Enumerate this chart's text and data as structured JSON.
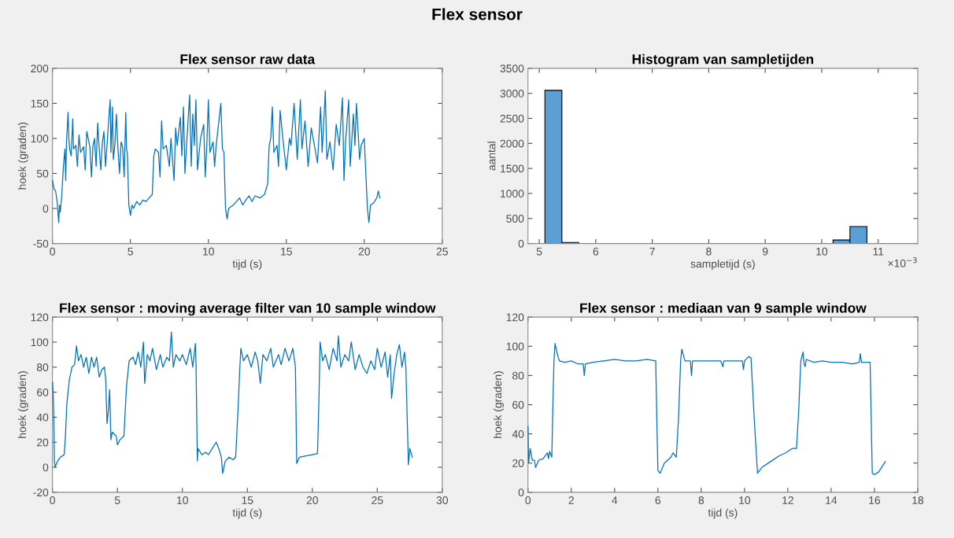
{
  "chart_data": [
    {
      "type": "other",
      "title": "Flex sensor"
    },
    {
      "type": "line",
      "title": "Flex sensor raw data",
      "xlabel": "tijd (s)",
      "ylabel": "hoek (graden)",
      "color": "#0072bd",
      "xlim": [
        0,
        25
      ],
      "xticks": [
        0,
        5,
        10,
        15,
        20,
        25
      ],
      "ylim": [
        -50,
        200
      ],
      "yticks": [
        -50,
        0,
        50,
        100,
        150,
        200
      ],
      "x": [
        0,
        0.1,
        0.2,
        0.3,
        0.4,
        0.45,
        0.5,
        0.6,
        0.7,
        0.8,
        0.85,
        0.9,
        1.0,
        1.05,
        1.1,
        1.2,
        1.3,
        1.35,
        1.5,
        1.6,
        1.7,
        1.8,
        2.0,
        2.1,
        2.2,
        2.4,
        2.5,
        2.6,
        2.7,
        2.8,
        2.9,
        3.0,
        3.1,
        3.2,
        3.3,
        3.4,
        3.5,
        3.6,
        3.7,
        3.75,
        3.85,
        3.9,
        4.0,
        4.1,
        4.2,
        4.3,
        4.4,
        4.5,
        4.6,
        4.7,
        4.75,
        4.8,
        4.9,
        5.0,
        5.1,
        5.2,
        5.4,
        5.6,
        5.8,
        6.0,
        6.2,
        6.4,
        6.5,
        6.6,
        6.8,
        6.9,
        7.0,
        7.1,
        7.3,
        7.5,
        7.6,
        7.8,
        7.9,
        8.0,
        8.2,
        8.3,
        8.4,
        8.5,
        8.6,
        8.8,
        8.9,
        9.0,
        9.1,
        9.2,
        9.3,
        9.5,
        9.7,
        9.8,
        9.9,
        10.0,
        10.1,
        10.3,
        10.4,
        10.5,
        10.8,
        10.9,
        11.0,
        11.1,
        11.2,
        11.3,
        11.6,
        11.8,
        12.0,
        12.2,
        12.4,
        12.6,
        12.8,
        13.0,
        13.3,
        13.6,
        13.8,
        13.9,
        14.0,
        14.1,
        14.2,
        14.4,
        14.5,
        14.6,
        14.8,
        15.0,
        15.2,
        15.3,
        15.5,
        15.7,
        15.9,
        16.0,
        16.2,
        16.4,
        16.6,
        16.8,
        17.0,
        17.2,
        17.3,
        17.5,
        17.6,
        17.8,
        18.0,
        18.2,
        18.4,
        18.6,
        18.7,
        18.8,
        19.0,
        19.1,
        19.3,
        19.4,
        19.5,
        19.7,
        19.8,
        20.0,
        20.1,
        20.2,
        20.3,
        20.4,
        20.6,
        20.8,
        20.9,
        21.0
      ],
      "values": [
        40,
        28,
        25,
        10,
        -20,
        5,
        -5,
        20,
        60,
        85,
        40,
        95,
        137,
        100,
        85,
        75,
        128,
        85,
        90,
        60,
        105,
        80,
        88,
        55,
        110,
        88,
        45,
        90,
        100,
        60,
        122,
        85,
        55,
        95,
        110,
        60,
        90,
        125,
        155,
        80,
        145,
        70,
        90,
        135,
        85,
        50,
        95,
        88,
        45,
        137,
        85,
        80,
        5,
        -10,
        5,
        0,
        10,
        5,
        12,
        10,
        15,
        20,
        75,
        85,
        80,
        45,
        125,
        85,
        90,
        60,
        100,
        40,
        115,
        90,
        130,
        75,
        145,
        50,
        90,
        162,
        60,
        135,
        90,
        155,
        55,
        100,
        120,
        45,
        90,
        155,
        80,
        95,
        60,
        90,
        150,
        85,
        80,
        0,
        -15,
        0,
        5,
        10,
        15,
        5,
        12,
        18,
        10,
        18,
        15,
        20,
        35,
        90,
        100,
        145,
        80,
        90,
        60,
        140,
        95,
        55,
        100,
        90,
        150,
        70,
        155,
        85,
        125,
        60,
        115,
        90,
        65,
        145,
        80,
        168,
        70,
        95,
        55,
        120,
        90,
        158,
        40,
        95,
        155,
        60,
        135,
        90,
        150,
        70,
        90,
        100,
        50,
        0,
        -20,
        5,
        8,
        15,
        25,
        15
      ]
    },
    {
      "type": "histogram",
      "title": "Histogram van sampletijden",
      "xlabel": "sampletijd (s)",
      "ylabel": "aantal",
      "color": "#5b9fd4",
      "xlim": [
        4.8,
        11.7
      ],
      "xticks": [
        5,
        6,
        7,
        8,
        9,
        10,
        11
      ],
      "ylim": [
        0,
        3500
      ],
      "yticks": [
        0,
        500,
        1000,
        1500,
        2000,
        2500,
        3000,
        3500
      ],
      "bins": [
        5.1,
        5.4,
        5.7,
        6.0,
        6.3,
        6.6,
        6.9,
        7.2,
        7.5,
        7.8,
        8.1,
        8.4,
        8.7,
        9.0,
        9.3,
        9.6,
        9.9,
        10.2,
        10.5,
        10.8
      ],
      "values": [
        3060,
        20,
        0,
        0,
        0,
        0,
        0,
        0,
        0,
        0,
        0,
        0,
        0,
        0,
        0,
        0,
        0,
        70,
        340
      ],
      "annotations": [
        "×10$^{−3}$"
      ]
    },
    {
      "type": "line",
      "title": "Flex sensor : moving average filter van 10 sample window",
      "xlabel": "tijd (s)",
      "ylabel": "hoek (graden)",
      "color": "#0072bd",
      "xlim": [
        0,
        30
      ],
      "xticks": [
        0,
        5,
        10,
        15,
        20,
        25,
        30
      ],
      "ylim": [
        -20,
        120
      ],
      "yticks": [
        -20,
        0,
        20,
        40,
        60,
        80,
        100,
        120
      ],
      "x": [
        0,
        0.05,
        0.1,
        0.15,
        0.2,
        0.4,
        0.6,
        0.9,
        1.0,
        1.1,
        1.3,
        1.5,
        1.7,
        1.85,
        2.0,
        2.2,
        2.4,
        2.6,
        2.8,
        3.0,
        3.2,
        3.4,
        3.6,
        3.8,
        4.0,
        4.1,
        4.2,
        4.3,
        4.4,
        4.5,
        4.6,
        4.9,
        5.0,
        5.2,
        5.5,
        5.7,
        5.9,
        6.2,
        6.4,
        6.6,
        6.8,
        7.0,
        7.1,
        7.3,
        7.5,
        7.7,
        8.0,
        8.3,
        8.5,
        8.8,
        9.0,
        9.15,
        9.3,
        9.5,
        9.8,
        10.0,
        10.3,
        10.6,
        10.8,
        11.0,
        11.05,
        11.15,
        11.2,
        11.5,
        11.8,
        12.0,
        12.3,
        12.6,
        12.8,
        13.0,
        13.1,
        13.3,
        13.6,
        13.9,
        14.1,
        14.3,
        14.4,
        14.5,
        14.7,
        15.0,
        15.3,
        15.6,
        15.8,
        16.0,
        16.2,
        16.5,
        16.8,
        17.0,
        17.4,
        17.6,
        17.9,
        18.2,
        18.5,
        18.7,
        18.8,
        19.0,
        19.5,
        20.0,
        20.4,
        20.5,
        20.6,
        20.8,
        21.0,
        21.3,
        21.6,
        21.9,
        22.0,
        22.2,
        22.5,
        22.8,
        23.0,
        23.3,
        23.6,
        23.9,
        24.2,
        24.5,
        24.8,
        25.0,
        25.3,
        25.6,
        25.8,
        26.0,
        26.1,
        26.3,
        26.5,
        26.7,
        26.9,
        27.1,
        27.2,
        27.3,
        27.4,
        27.5,
        27.7
      ],
      "values": [
        68,
        60,
        40,
        5,
        0,
        5,
        8,
        10,
        25,
        50,
        70,
        80,
        82,
        97,
        85,
        90,
        80,
        88,
        75,
        88,
        80,
        88,
        72,
        78,
        80,
        70,
        35,
        45,
        62,
        22,
        28,
        25,
        18,
        22,
        25,
        65,
        85,
        88,
        82,
        92,
        80,
        100,
        67,
        90,
        85,
        95,
        78,
        90,
        80,
        88,
        85,
        108,
        80,
        90,
        85,
        90,
        82,
        95,
        80,
        99,
        82,
        5,
        15,
        10,
        12,
        10,
        15,
        20,
        15,
        8,
        -5,
        5,
        8,
        6,
        8,
        50,
        75,
        95,
        85,
        90,
        80,
        92,
        85,
        67,
        90,
        85,
        95,
        80,
        90,
        82,
        95,
        85,
        95,
        80,
        3,
        8,
        9,
        10,
        11,
        50,
        100,
        85,
        90,
        78,
        95,
        85,
        105,
        80,
        90,
        85,
        100,
        78,
        90,
        80,
        75,
        85,
        78,
        95,
        80,
        92,
        72,
        90,
        55,
        75,
        90,
        98,
        80,
        92,
        80,
        40,
        2,
        15,
        8
      ]
    },
    {
      "type": "line",
      "title": "Flex sensor : mediaan van 9 sample window",
      "xlabel": "tijd (s)",
      "ylabel": "hoek (graden)",
      "color": "#0072bd",
      "xlim": [
        0,
        18
      ],
      "xticks": [
        0,
        2,
        4,
        6,
        8,
        10,
        12,
        14,
        16,
        18
      ],
      "ylim": [
        0,
        120
      ],
      "yticks": [
        0,
        20,
        40,
        60,
        80,
        100,
        120
      ],
      "x": [
        0,
        0.03,
        0.1,
        0.2,
        0.3,
        0.35,
        0.5,
        0.7,
        0.9,
        0.95,
        1.0,
        1.1,
        1.15,
        1.2,
        1.25,
        1.35,
        1.45,
        1.7,
        2.0,
        2.3,
        2.55,
        2.6,
        2.65,
        3.0,
        3.5,
        4.0,
        4.5,
        5.0,
        5.5,
        5.9,
        5.95,
        6.0,
        6.1,
        6.3,
        6.6,
        6.7,
        6.85,
        6.95,
        7.05,
        7.1,
        7.25,
        7.5,
        7.55,
        7.6,
        8.0,
        8.5,
        8.9,
        9.0,
        9.05,
        9.5,
        9.9,
        9.95,
        10.0,
        10.2,
        10.3,
        10.45,
        10.6,
        10.8,
        11.2,
        11.6,
        11.9,
        12.2,
        12.4,
        12.5,
        12.6,
        12.7,
        12.75,
        12.8,
        12.85,
        13.2,
        13.6,
        14.0,
        14.5,
        15.0,
        15.3,
        15.35,
        15.4,
        15.8,
        15.85,
        15.9,
        16.0,
        16.2,
        16.5
      ],
      "values": [
        45,
        20,
        30,
        22,
        22,
        17,
        22,
        23,
        27,
        23,
        28,
        24,
        60,
        90,
        102,
        95,
        90,
        89,
        90,
        88,
        88,
        80,
        88,
        89,
        90,
        91,
        90,
        90,
        91,
        90,
        50,
        15,
        13,
        20,
        24,
        27,
        24,
        50,
        90,
        98,
        90,
        90,
        80,
        90,
        90,
        90,
        90,
        86,
        90,
        90,
        90,
        84,
        90,
        93,
        92,
        50,
        13,
        17,
        21,
        25,
        27,
        30,
        30,
        55,
        90,
        96,
        88,
        86,
        91,
        89,
        90,
        89,
        89,
        88,
        89,
        95,
        89,
        89,
        50,
        13,
        12,
        14,
        21
      ]
    }
  ]
}
